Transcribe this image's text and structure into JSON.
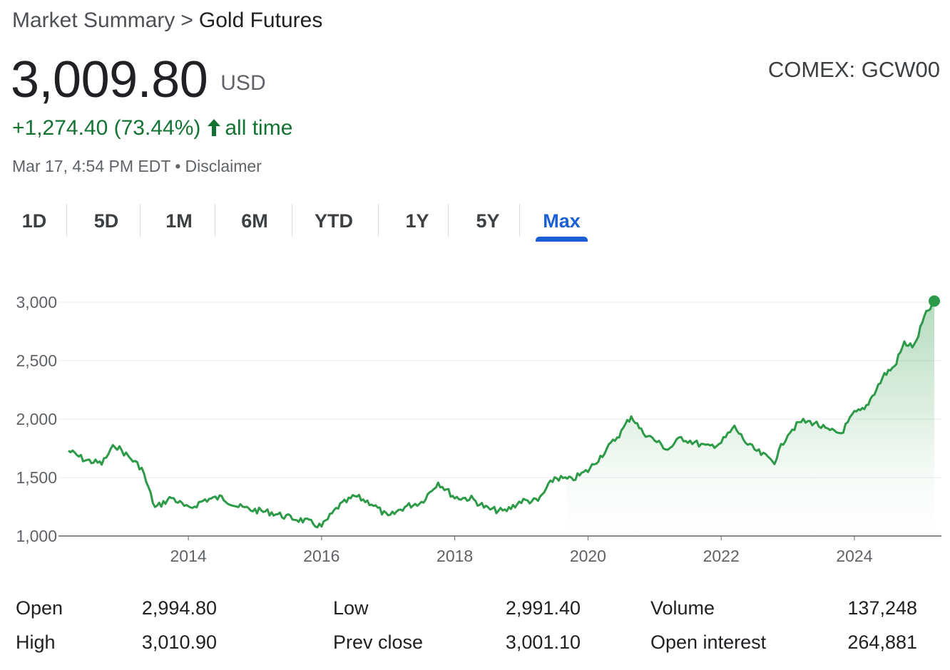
{
  "breadcrumb": {
    "root": "Market Summary",
    "separator": ">",
    "current": "Gold Futures"
  },
  "quote": {
    "price": "3,009.80",
    "currency": "USD",
    "exchange": "COMEX: GCW00",
    "change": "+1,274.40 (73.44%)",
    "change_period": "all time",
    "change_color": "#137333",
    "timestamp": "Mar 17, 4:54 PM EDT",
    "separator": "•",
    "disclaimer": "Disclaimer"
  },
  "tabs": [
    {
      "label": "1D",
      "active": false
    },
    {
      "label": "5D",
      "active": false
    },
    {
      "label": "1M",
      "active": false
    },
    {
      "label": "6M",
      "active": false
    },
    {
      "label": "YTD",
      "active": false
    },
    {
      "label": "1Y",
      "active": false
    },
    {
      "label": "5Y",
      "active": false
    },
    {
      "label": "Max",
      "active": true
    }
  ],
  "colors": {
    "accent": "#1a5fd6",
    "line": "#2d9a47",
    "area_top": "#2d9a47"
  },
  "chart_data": {
    "type": "area",
    "y_ticks": [
      "3,000",
      "2,500",
      "2,000",
      "1,500",
      "1,000"
    ],
    "y_tick_values": [
      3000,
      2500,
      2000,
      1500,
      1000
    ],
    "x_ticks": [
      "2014",
      "2016",
      "2018",
      "2020",
      "2022",
      "2024"
    ],
    "ylim": [
      1000,
      3000
    ],
    "xlim": [
      2012.2,
      2025.2
    ],
    "grid": true,
    "series": [
      {
        "x": [
          2012.2,
          2012.45,
          2012.7,
          2012.9,
          2013.1,
          2013.3,
          2013.5,
          2013.75,
          2014.0,
          2014.25,
          2014.5,
          2014.75,
          2015.0,
          2015.25,
          2015.5,
          2015.75,
          2016.0,
          2016.25,
          2016.5,
          2016.75,
          2017.0,
          2017.25,
          2017.5,
          2017.75,
          2018.0,
          2018.25,
          2018.5,
          2018.75,
          2019.0,
          2019.25,
          2019.5,
          2019.75,
          2020.0,
          2020.25,
          2020.5,
          2020.65,
          2020.8,
          2021.0,
          2021.2,
          2021.4,
          2021.6,
          2021.8,
          2022.0,
          2022.2,
          2022.4,
          2022.6,
          2022.8,
          2023.0,
          2023.2,
          2023.4,
          2023.6,
          2023.8,
          2024.0,
          2024.15,
          2024.3,
          2024.45,
          2024.6,
          2024.75,
          2024.9,
          2025.05,
          2025.2
        ],
        "values": [
          1730,
          1650,
          1620,
          1780,
          1680,
          1580,
          1240,
          1330,
          1230,
          1310,
          1330,
          1250,
          1220,
          1200,
          1160,
          1130,
          1080,
          1250,
          1340,
          1280,
          1160,
          1250,
          1290,
          1460,
          1330,
          1320,
          1230,
          1210,
          1300,
          1300,
          1500,
          1480,
          1560,
          1720,
          1890,
          2030,
          1900,
          1820,
          1740,
          1840,
          1800,
          1760,
          1800,
          1930,
          1780,
          1700,
          1640,
          1880,
          1980,
          1970,
          1900,
          1880,
          2050,
          2080,
          2230,
          2380,
          2450,
          2650,
          2620,
          2870,
          3009.8
        ]
      }
    ]
  },
  "stats": [
    {
      "label": "Open",
      "value": "2,994.80"
    },
    {
      "label": "High",
      "value": "3,010.90"
    },
    {
      "label": "Low",
      "value": "2,991.40"
    },
    {
      "label": "Prev close",
      "value": "3,001.10"
    },
    {
      "label": "Volume",
      "value": "137,248"
    },
    {
      "label": "Open interest",
      "value": "264,881"
    }
  ]
}
